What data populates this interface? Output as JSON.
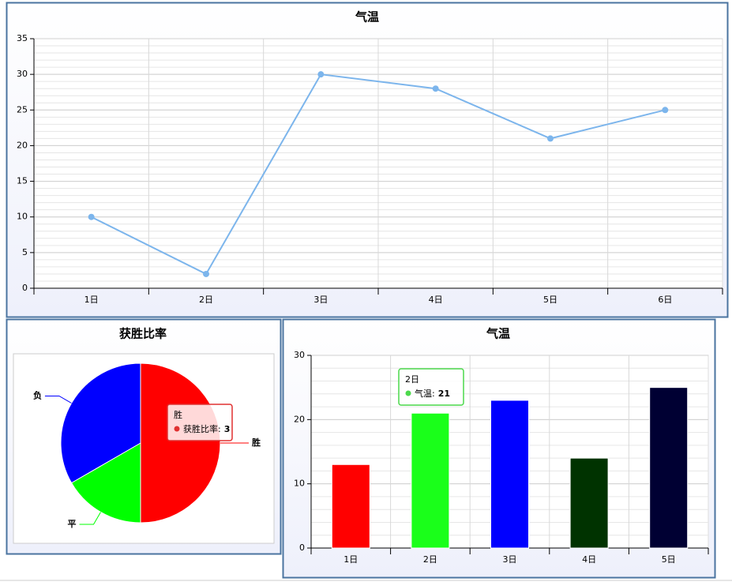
{
  "chart_data": [
    {
      "type": "line",
      "title": "气温",
      "categories": [
        "1日",
        "2日",
        "3日",
        "4日",
        "5日",
        "6日"
      ],
      "values": [
        10,
        2,
        30,
        28,
        21,
        25
      ],
      "color": "#7cb5ec",
      "ylim": [
        0,
        35
      ],
      "yticks": [
        0,
        5,
        10,
        15,
        20,
        25,
        30,
        35
      ],
      "grid": true
    },
    {
      "type": "pie",
      "title": "获胜比率",
      "categories": [
        "胜",
        "平",
        "负"
      ],
      "values": [
        3,
        1,
        2
      ],
      "colors": [
        "#ff0000",
        "#00ff00",
        "#0000ff"
      ],
      "tooltip": {
        "label": "获胜比率:"
      }
    },
    {
      "type": "bar",
      "title": "气温",
      "categories": [
        "1日",
        "2日",
        "3日",
        "4日",
        "5日"
      ],
      "values": [
        13,
        21,
        23,
        14,
        25
      ],
      "colors": [
        "#ff0000",
        "#1aff1a",
        "#0000ff",
        "#003300",
        "#000033"
      ],
      "ylim": [
        0,
        30
      ],
      "yticks": [
        0,
        10,
        20,
        30
      ],
      "grid": true,
      "tooltip": {
        "label": "气温:"
      }
    }
  ]
}
